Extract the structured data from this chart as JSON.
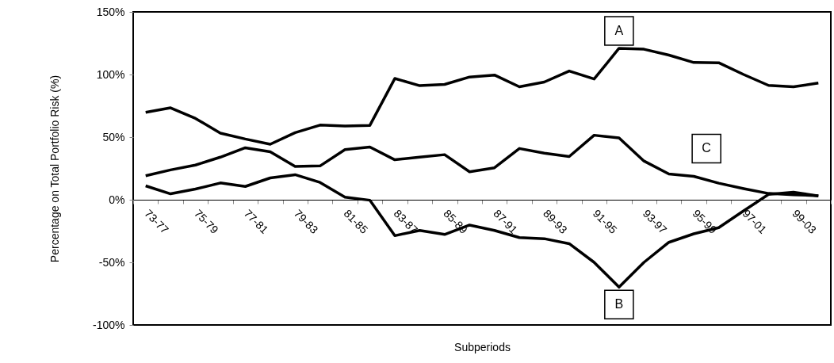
{
  "chart_data": {
    "type": "line",
    "xlabel": "Subperiods",
    "ylabel": "Percentage on Total Portfolio Risk (%)",
    "categories": [
      "73-77",
      null,
      "75-79",
      null,
      "77-81",
      null,
      "79-83",
      null,
      "81-85",
      null,
      "83-87",
      null,
      "85-89",
      null,
      "87-91",
      null,
      "89-93",
      null,
      "91-95",
      null,
      "93-97",
      null,
      "95-99",
      null,
      "97-01",
      null,
      "99-03",
      null
    ],
    "series": [
      {
        "name": "A",
        "color": "#000000",
        "values": [
          69.8,
          73.4,
          64.9,
          53.2,
          48.5,
          44.3,
          53.6,
          59.6,
          58.9,
          59.4,
          96.8,
          91.1,
          92.1,
          98,
          99.6,
          90.2,
          94,
          102.8,
          96.4,
          120.9,
          120.2,
          115.5,
          109.6,
          109.4,
          100,
          91.3,
          90.2,
          93.2
        ]
      },
      {
        "name": "B",
        "color": "#000000",
        "values": [
          11.1,
          4.7,
          8.5,
          13.4,
          10.6,
          17.4,
          20,
          13.8,
          2.1,
          -0.4,
          -28.7,
          -24.5,
          -27.7,
          -20.2,
          -24.5,
          -30.2,
          -31.1,
          -35.1,
          -50,
          -69.8,
          -50,
          -34,
          -27.2,
          -22.3,
          -8.9,
          4.3,
          6,
          3
        ]
      },
      {
        "name": "C",
        "color": "#000000",
        "values": [
          19.1,
          23.8,
          27.7,
          34,
          41.5,
          38.3,
          26.6,
          27,
          40,
          42.1,
          31.9,
          34,
          36,
          22.3,
          25.5,
          40.9,
          37.2,
          34.5,
          51.5,
          49.4,
          30.9,
          20.6,
          18.7,
          13.2,
          8.9,
          5,
          4,
          3.2
        ]
      }
    ],
    "ylim": [
      -100,
      150
    ],
    "yticks": [
      {
        "value": -100,
        "label": "-100%"
      },
      {
        "value": -50,
        "label": "-50%"
      },
      {
        "value": 0,
        "label": "0%"
      },
      {
        "value": 50,
        "label": "50%"
      },
      {
        "value": 100,
        "label": "100%"
      },
      {
        "value": 150,
        "label": "150%"
      }
    ],
    "grid": false,
    "marker": "none",
    "line_style": "solid"
  }
}
